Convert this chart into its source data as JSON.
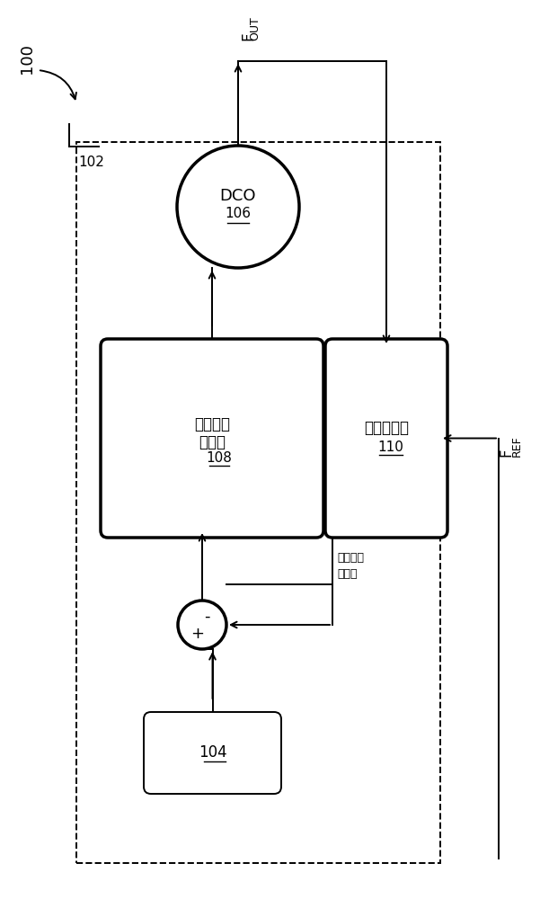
{
  "fig_label": "100",
  "dco_label": "DCO",
  "dco_num": "106",
  "filter_line1": "数字环路",
  "filter_line2": "滤波器",
  "filter_num": "108",
  "freq_line1": "频率计数器",
  "freq_num": "110",
  "block104_label": "104",
  "spread_line1": "随机位移",
  "spread_line2": "频率偶",
  "outer_box_label": "102",
  "fout_label": "F",
  "fout_sub": "OUT",
  "fref_label": "F",
  "fref_sub": "REF",
  "bg_color": "#ffffff",
  "line_color": "#000000"
}
